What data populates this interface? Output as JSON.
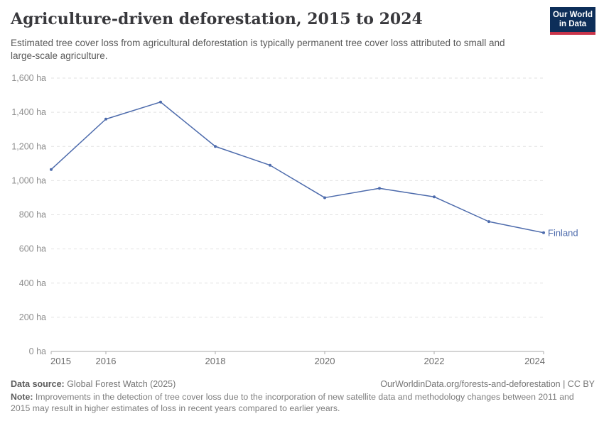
{
  "header": {
    "title": "Agriculture-driven deforestation, 2015 to 2024",
    "subtitle": "Estimated tree cover loss from agricultural deforestation is typically permanent tree cover loss attributed to small and large-scale agriculture.",
    "logo": {
      "line1": "Our World",
      "line2": "in Data"
    }
  },
  "chart_data": {
    "type": "line",
    "title": "Agriculture-driven deforestation, 2015 to 2024",
    "x": [
      2015,
      2016,
      2017,
      2018,
      2019,
      2020,
      2021,
      2022,
      2023,
      2024
    ],
    "series": [
      {
        "name": "Finland",
        "values": [
          1065,
          1360,
          1460,
          1200,
          1090,
          900,
          955,
          905,
          760,
          695
        ],
        "color": "#4d6bac"
      }
    ],
    "xlabel": "",
    "ylabel": "",
    "ylim": [
      0,
      1600
    ],
    "ytick_step": 200,
    "ytick_suffix": " ha",
    "xticks_labeled": [
      2015,
      2016,
      2018,
      2020,
      2022,
      2024
    ],
    "grid": "horizontal-dashed",
    "legend": "end-of-line-label"
  },
  "footer": {
    "data_source_label": "Data source:",
    "data_source_value": " Global Forest Watch (2025)",
    "link": "OurWorldinData.org/forests-and-deforestation | CC BY",
    "note_label": "Note:",
    "note_text": " Improvements in the detection of tree cover loss due to the incorporation of new satellite data and methodology changes between 2011 and 2015 may result in higher estimates of loss in recent years compared to earlier years."
  },
  "colors": {
    "accent_line": "#4d6bac",
    "logo_navy": "#0d2e59",
    "logo_red": "#c9344a",
    "grid": "#e2e2e2",
    "axis": "#a8a8a8",
    "ytick_text": "#8f8f8f",
    "xtick_text": "#6c6c6c",
    "title_text": "#38383c"
  }
}
